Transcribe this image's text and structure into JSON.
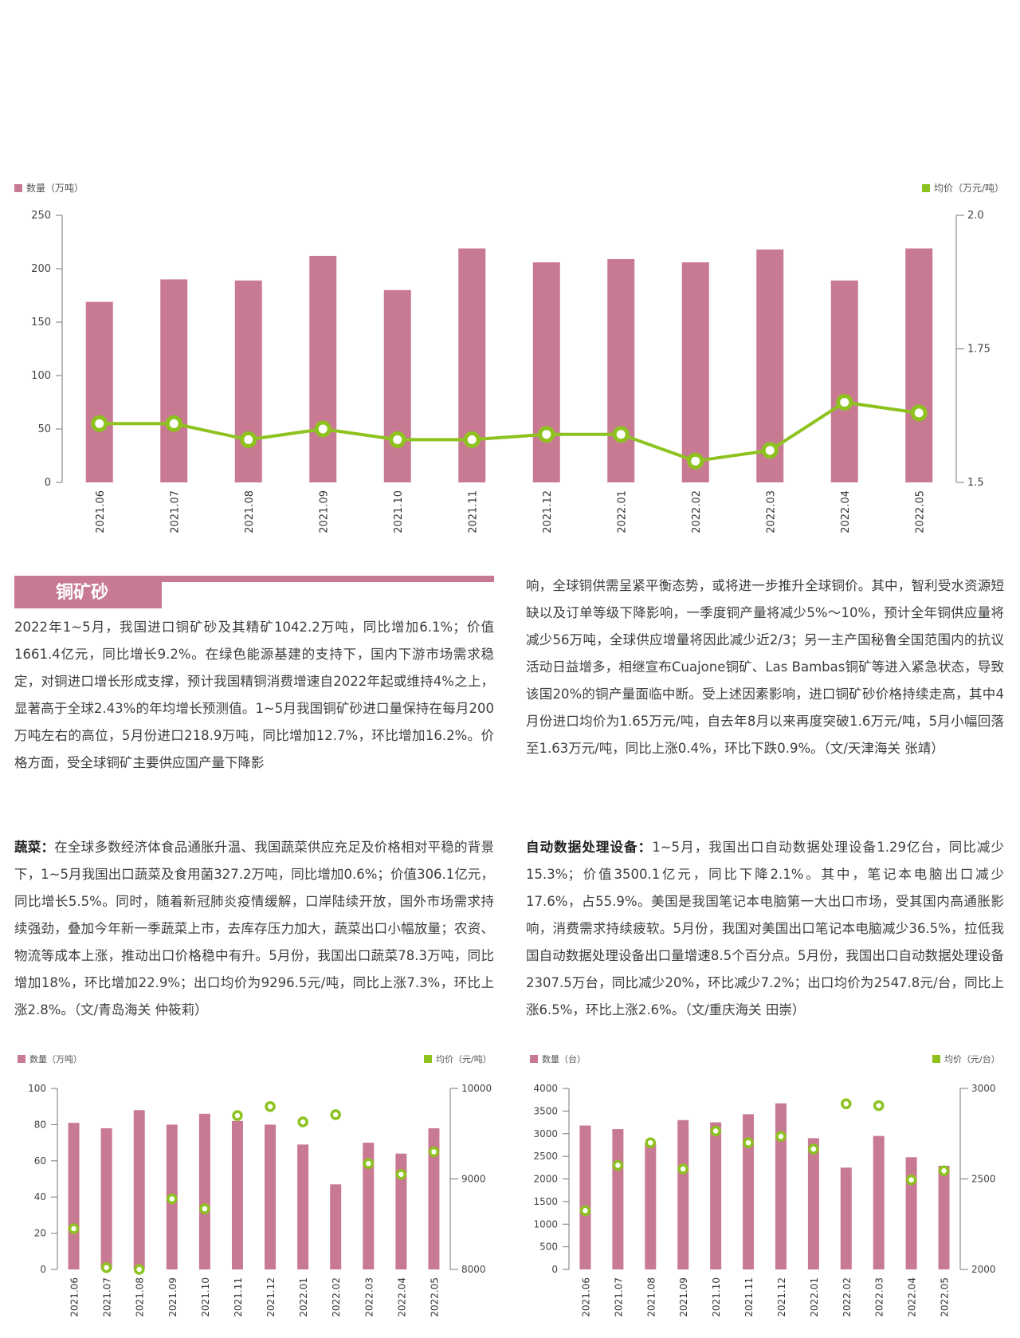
{
  "colors": {
    "bar": "#c87a93",
    "line": "#8dc21f",
    "section": "#c87a93"
  },
  "chart_data": [
    {
      "type": "bar",
      "legend_left": "数量（万吨）",
      "legend_right": "均价（万元/吨）",
      "categories": [
        "2021.06",
        "2021.07",
        "2021.08",
        "2021.09",
        "2021.10",
        "2021.11",
        "2021.12",
        "2022.01",
        "2022.02",
        "2022.03",
        "2022.04",
        "2022.05"
      ],
      "series": [
        {
          "name": "数量（万吨）",
          "type": "bar",
          "axis": "left",
          "values": [
            169,
            190,
            189,
            212,
            180,
            219,
            206,
            209,
            206,
            218,
            189,
            219
          ]
        },
        {
          "name": "均价（万元/吨）",
          "type": "line",
          "axis": "right",
          "values": [
            1.61,
            1.61,
            1.58,
            1.6,
            1.58,
            1.58,
            1.59,
            1.59,
            1.54,
            1.56,
            1.65,
            1.63
          ]
        }
      ],
      "ylim_left": [
        0,
        250
      ],
      "yticks_left": [
        0,
        50,
        100,
        150,
        200,
        250
      ],
      "ylim_right": [
        1.5,
        2.0
      ],
      "yticks_right_labels": [
        "1.5",
        "1.75",
        "2.0"
      ]
    },
    {
      "type": "bar",
      "legend_left": "数量（万吨）",
      "legend_right": "均价（元/吨）",
      "categories": [
        "2021.06",
        "2021.07",
        "2021.08",
        "2021.09",
        "2021.10",
        "2021.11",
        "2021.12",
        "2022.01",
        "2022.02",
        "2022.03",
        "2022.04",
        "2022.05"
      ],
      "series": [
        {
          "name": "数量（万吨）",
          "type": "bar",
          "axis": "left",
          "values": [
            81,
            78,
            88,
            80,
            86,
            82,
            80,
            69,
            47,
            70,
            64,
            78
          ]
        },
        {
          "name": "均价（元/吨）",
          "type": "scatter",
          "axis": "right",
          "values": [
            8450,
            8020,
            8000,
            8780,
            8670,
            9700,
            9800,
            9630,
            9710,
            9170,
            9050,
            9300
          ]
        }
      ],
      "ylim_left": [
        0,
        100
      ],
      "yticks_left": [
        0,
        20,
        40,
        60,
        80,
        100
      ],
      "ylim_right": [
        8000,
        10000
      ],
      "yticks_right_labels": [
        "8000",
        "9000",
        "10000"
      ]
    },
    {
      "type": "bar",
      "legend_left": "数量（台）",
      "legend_right": "均价（元/台）",
      "categories": [
        "2021.06",
        "2021.07",
        "2021.08",
        "2021.09",
        "2021.10",
        "2021.11",
        "2021.12",
        "2022.01",
        "2022.02",
        "2022.03",
        "2022.04",
        "2022.05"
      ],
      "series": [
        {
          "name": "数量（台）",
          "type": "bar",
          "axis": "left",
          "values": [
            3180,
            3100,
            2800,
            3300,
            3250,
            3430,
            3670,
            2900,
            2250,
            2950,
            2480,
            2290
          ]
        },
        {
          "name": "均价（元/台）",
          "type": "scatter",
          "axis": "right",
          "values": [
            2325,
            2575,
            2700,
            2555,
            2765,
            2700,
            2735,
            2665,
            2915,
            2905,
            2495,
            2545
          ]
        }
      ],
      "ylim_left": [
        0,
        4000
      ],
      "yticks_left": [
        0,
        500,
        1000,
        1500,
        2000,
        2500,
        3000,
        3500,
        4000
      ],
      "ylim_right": [
        2000,
        3000
      ],
      "yticks_right_labels": [
        "2000",
        "2500",
        "3000"
      ]
    }
  ],
  "copper": {
    "title": "铜矿砂",
    "col1": "2022年1~5月，我国进口铜矿砂及其精矿1042.2万吨，同比增加6.1%；价值1661.4亿元，同比增长9.2%。在绿色能源基建的支持下，国内下游市场需求稳定，对铜进口增长形成支撑，预计我国精铜消费增速自2022年起或维持4%之上，显著高于全球2.43%的年均增长预测值。1~5月我国铜矿砂进口量保持在每月200万吨左右的高位，5月份进口218.9万吨，同比增加12.7%，环比增加16.2%。价格方面，受全球铜矿主要供应国产量下降影",
    "col2": "响，全球铜供需呈紧平衡态势，或将进一步推升全球铜价。其中，智利受水资源短缺以及订单等级下降影响，一季度铜产量将减少5%～10%，预计全年铜供应量将减少56万吨，全球供应增量将因此减少近2/3；另一主产国秘鲁全国范围内的抗议活动日益增多，相继宣布Cuajone铜矿、Las Bambas铜矿等进入紧急状态，导致该国20%的铜产量面临中断。受上述因素影响，进口铜矿砂价格持续走高，其中4月份进口均价为1.65万元/吨，自去年8月以来再度突破1.6万元/吨，5月小幅回落至1.63万元/吨，同比上涨0.4%，环比下跌0.9%。（文/天津海关 张靖）"
  },
  "vegetables": {
    "label": "蔬菜：",
    "text": "在全球多数经济体食品通胀升温、我国蔬菜供应充足及价格相对平稳的背景下，1~5月我国出口蔬菜及食用菌327.2万吨，同比增加0.6%；价值306.1亿元，同比增长5.5%。同时，随着新冠肺炎疫情缓解，口岸陆续开放，国外市场需求持续强劲，叠加今年新一季蔬菜上市，去库存压力加大，蔬菜出口小幅放量；农资、物流等成本上涨，推动出口价格稳中有升。5月份，我国出口蔬菜78.3万吨，同比增加18%，环比增加22.9%；出口均价为9296.5元/吨，同比上涨7.3%，环比上涨2.8%。（文/青岛海关 仲筱莉）"
  },
  "adp": {
    "label": "自动数据处理设备：",
    "text": "1~5月，我国出口自动数据处理设备1.29亿台，同比减少15.3%；价值3500.1亿元，同比下降2.1%。其中，笔记本电脑出口减少17.6%，占55.9%。美国是我国笔记本电脑第一大出口市场，受其国内高通胀影响，消费需求持续疲软。5月份，我国对美国出口笔记本电脑减少36.5%，拉低我国自动数据处理设备出口量增速8.5个百分点。5月份，我国出口自动数据处理设备2307.5万台，同比减少20%，环比减少7.2%；出口均价为2547.8元/台，同比上涨6.5%，环比上涨2.6%。（文/重庆海关 田崇）"
  }
}
